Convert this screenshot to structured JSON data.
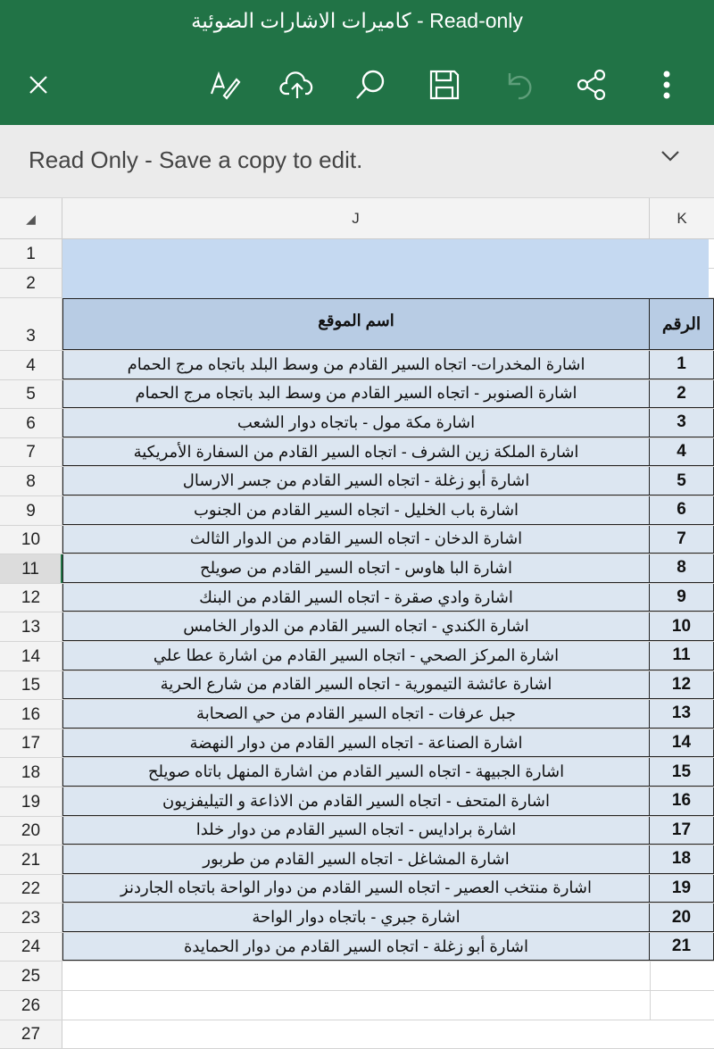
{
  "window": {
    "title": "كاميرات الاشارات الضوئية - Read-only"
  },
  "toolbar": {
    "icons": [
      "close-icon",
      "draw-pen-icon",
      "cloud-upload-icon",
      "search-icon",
      "save-icon",
      "undo-icon",
      "share-icon",
      "more-icon"
    ]
  },
  "banner": {
    "text": "Read Only - Save a copy to edit."
  },
  "columns": {
    "corner": "◢",
    "j": "J",
    "k": "K"
  },
  "table": {
    "header_name": "اسم الموقع",
    "header_num": "الرقم",
    "rows": [
      {
        "row": "4",
        "num": "1",
        "name": "اشارة المخدرات- اتجاه السير القادم من وسط البلد باتجاه مرج الحمام"
      },
      {
        "row": "5",
        "num": "2",
        "name": "اشارة الصنوبر - اتجاه السير القادم من وسط البد باتجاه مرج الحمام"
      },
      {
        "row": "6",
        "num": "3",
        "name": "اشارة مكة مول - باتجاه دوار الشعب"
      },
      {
        "row": "7",
        "num": "4",
        "name": "اشارة الملكة زين الشرف - اتجاه السير القادم من السفارة الأمريكية"
      },
      {
        "row": "8",
        "num": "5",
        "name": "اشارة أبو زغلة - اتجاه السير القادم من جسر الارسال"
      },
      {
        "row": "9",
        "num": "6",
        "name": "اشارة باب الخليل - اتجاه السير القادم من الجنوب"
      },
      {
        "row": "10",
        "num": "7",
        "name": "اشارة الدخان - اتجاه السير القادم من الدوار الثالث"
      },
      {
        "row": "11",
        "num": "8",
        "name": "اشارة البا هاوس - اتجاه السير القادم من صويلح"
      },
      {
        "row": "12",
        "num": "9",
        "name": "اشارة وادي صقرة - اتجاه السير القادم من البنك"
      },
      {
        "row": "13",
        "num": "10",
        "name": "اشارة الكندي - اتجاه السير القادم من الدوار الخامس"
      },
      {
        "row": "14",
        "num": "11",
        "name": "اشارة المركز الصحي - اتجاه السير القادم من اشارة عطا علي"
      },
      {
        "row": "15",
        "num": "12",
        "name": "اشارة عائشة التيمورية - اتجاه السير القادم من شارع الحرية"
      },
      {
        "row": "16",
        "num": "13",
        "name": "جبل عرفات - اتجاه السير القادم من حي الصحابة"
      },
      {
        "row": "17",
        "num": "14",
        "name": "اشارة الصناعة - اتجاه السير القادم من دوار النهضة"
      },
      {
        "row": "18",
        "num": "15",
        "name": "اشارة الجبيهة - اتجاه السير القادم من اشارة المنهل باتاه صويلح"
      },
      {
        "row": "19",
        "num": "16",
        "name": "اشارة المتحف - اتجاه السير القادم من الاذاعة و التيليفزيون"
      },
      {
        "row": "20",
        "num": "17",
        "name": "اشارة برادايس - اتجاه السير القادم من دوار خلدا"
      },
      {
        "row": "21",
        "num": "18",
        "name": "اشارة المشاغل - اتجاه السير القادم من طربور"
      },
      {
        "row": "22",
        "num": "19",
        "name": "اشارة منتخب العصير - اتجاه السير القادم من دوار الواحة باتجاه الجاردنز"
      },
      {
        "row": "23",
        "num": "20",
        "name": "اشارة جبري - باتجاه دوار الواحة"
      },
      {
        "row": "24",
        "num": "21",
        "name": "اشارة أبو زغلة - اتجاه السير القادم من دوار الحمايدة"
      }
    ]
  },
  "row_numbers": {
    "r1": "1",
    "r2": "2",
    "r3": "3",
    "r25": "25",
    "r26": "26",
    "r27": "27"
  },
  "selected_row": "11",
  "colors": {
    "brand": "#217346",
    "table_header": "#b8cce4",
    "table_row": "#dce6f1"
  }
}
